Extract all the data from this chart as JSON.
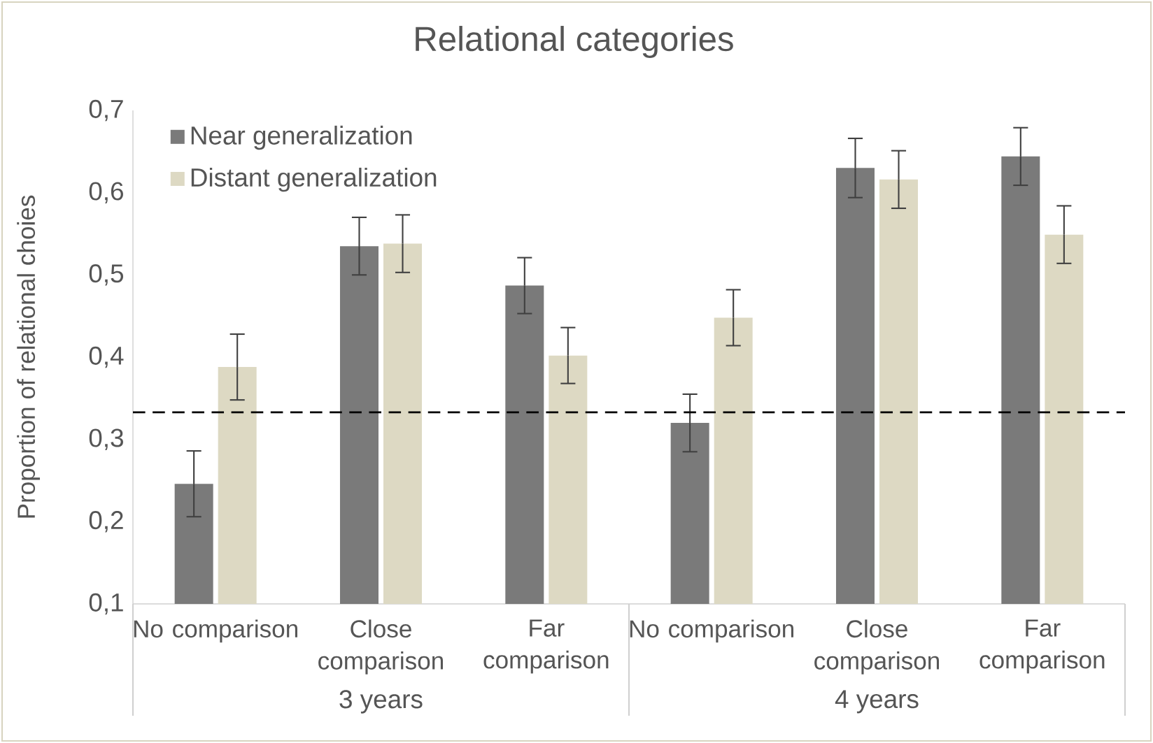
{
  "chart_data": {
    "type": "bar",
    "title": "Relational categories",
    "ylabel": "Proportion of relational choies",
    "categories": [
      "No comparison",
      "Close comparison",
      "Far comparison",
      "No comparison",
      "Close comparison",
      "Far comparison"
    ],
    "series": [
      {
        "name": "Near generalization",
        "color": "#7a7a7a",
        "values": [
          0.246,
          0.535,
          0.487,
          0.32,
          0.63,
          0.644
        ],
        "errors": [
          0.04,
          0.035,
          0.034,
          0.035,
          0.036,
          0.035
        ]
      },
      {
        "name": "Distant generalization",
        "color": "#ddd9c3",
        "values": [
          0.388,
          0.538,
          0.402,
          0.448,
          0.616,
          0.549
        ],
        "errors": [
          0.04,
          0.035,
          0.034,
          0.034,
          0.035,
          0.035
        ]
      }
    ],
    "ylim": [
      0.1,
      0.7
    ],
    "yticks": [
      {
        "value": 0.1,
        "label": "0,1"
      },
      {
        "value": 0.2,
        "label": "0,2"
      },
      {
        "value": 0.3,
        "label": "0,3"
      },
      {
        "value": 0.4,
        "label": "0,4"
      },
      {
        "value": 0.5,
        "label": "0,5"
      },
      {
        "value": 0.6,
        "label": "0,6"
      },
      {
        "value": 0.7,
        "label": "0,7"
      }
    ],
    "ref_lines": [
      {
        "axis": "y",
        "value": 0.333,
        "line_style": "dashed",
        "color": "#000000"
      }
    ],
    "annotations": [
      "3 years",
      "4 years"
    ],
    "legend": "top left"
  }
}
